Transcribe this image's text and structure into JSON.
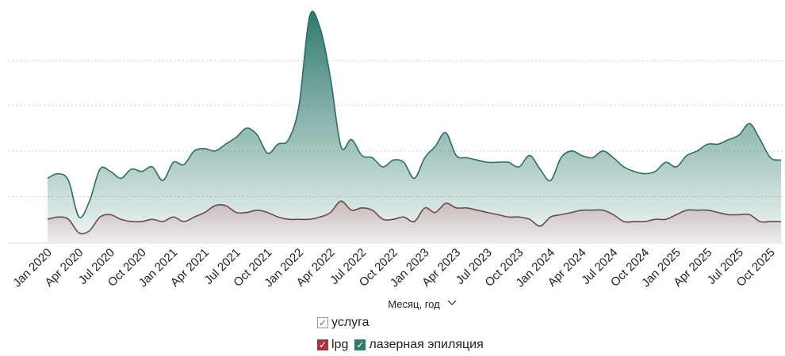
{
  "chart_data": {
    "type": "area",
    "xlabel": "Месяц, год",
    "tick_labels": [
      "Jan 2020",
      "Apr 2020",
      "Jul 2020",
      "Oct 2020",
      "Jan 2021",
      "Apr 2021",
      "Jul 2021",
      "Oct 2021",
      "Jan 2022",
      "Apr 2022",
      "Jul 2022",
      "Oct 2022",
      "Jan 2023",
      "Apr 2023",
      "Jul 2023",
      "Oct 2023",
      "Jan 2024",
      "Apr 2024",
      "Jul 2024",
      "Oct 2024",
      "Jan 2025",
      "Apr 2025",
      "Jul 2025",
      "Oct 2025"
    ],
    "ylim": [
      0,
      100
    ],
    "grid": true,
    "legend_position": "bottom",
    "legend_title": "услуга",
    "series": [
      {
        "name": "lpg",
        "color": "#a8343e",
        "values": [
          10,
          11,
          10,
          4,
          5,
          11,
          12,
          10,
          9,
          9,
          10,
          9,
          11,
          9,
          11,
          13,
          16,
          16,
          13,
          13,
          14,
          13,
          11,
          10,
          10,
          10,
          11,
          13,
          18,
          14,
          15,
          14,
          10,
          10,
          11,
          9,
          15,
          13,
          17,
          15,
          15,
          14,
          13,
          12,
          11,
          11,
          10,
          7,
          11,
          12,
          13,
          14,
          14,
          14,
          12,
          9,
          9,
          9,
          10,
          10,
          12,
          14,
          14,
          14,
          13,
          12,
          12,
          12,
          9,
          9,
          9
        ]
      },
      {
        "name": "лазерная эпиляция",
        "color": "#2f7a6e",
        "values": [
          28,
          30,
          27,
          11,
          18,
          32,
          31,
          28,
          32,
          31,
          33,
          27,
          35,
          34,
          40,
          41,
          40,
          43,
          46,
          50,
          47,
          39,
          43,
          45,
          60,
          99,
          94,
          72,
          42,
          45,
          38,
          37,
          33,
          36,
          35,
          28,
          37,
          42,
          48,
          38,
          37,
          36,
          35,
          35,
          35,
          33,
          38,
          32,
          27,
          37,
          40,
          38,
          37,
          40,
          37,
          33,
          31,
          30,
          31,
          35,
          33,
          38,
          40,
          43,
          43,
          45,
          47,
          52,
          45,
          37,
          36
        ]
      }
    ]
  }
}
